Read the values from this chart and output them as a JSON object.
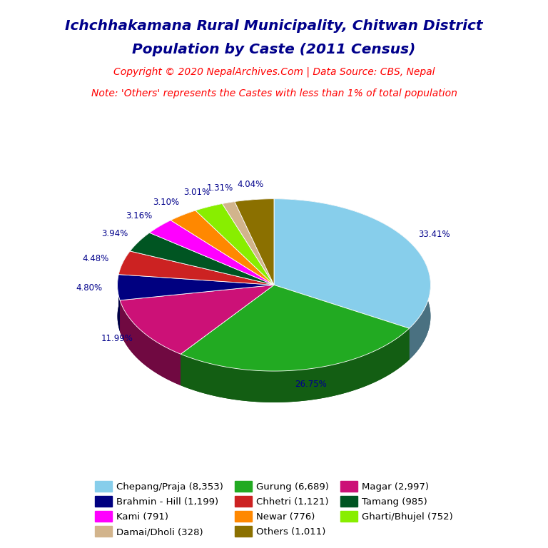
{
  "title_line1": "Ichchhakamana Rural Municipality, Chitwan District",
  "title_line2": "Population by Caste (2011 Census)",
  "copyright_text": "Copyright © 2020 NepalArchives.Com | Data Source: CBS, Nepal",
  "note_text": "Note: 'Others' represents the Castes with less than 1% of total population",
  "slices": [
    {
      "label": "Chepang/Praja",
      "value": 8353,
      "pct": 33.41,
      "color": "#87CEEB"
    },
    {
      "label": "Gurung",
      "value": 6689,
      "pct": 26.75,
      "color": "#22AA22"
    },
    {
      "label": "Magar",
      "value": 2997,
      "pct": 11.99,
      "color": "#CC1177"
    },
    {
      "label": "Brahmin - Hill",
      "value": 1199,
      "pct": 4.8,
      "color": "#000080"
    },
    {
      "label": "Chhetri",
      "value": 1121,
      "pct": 4.48,
      "color": "#CC2222"
    },
    {
      "label": "Tamang",
      "value": 985,
      "pct": 3.94,
      "color": "#005522"
    },
    {
      "label": "Kami",
      "value": 791,
      "pct": 3.16,
      "color": "#FF00FF"
    },
    {
      "label": "Newar",
      "value": 776,
      "pct": 3.1,
      "color": "#FF8800"
    },
    {
      "label": "Gharti/Bhujel",
      "value": 752,
      "pct": 3.01,
      "color": "#88EE00"
    },
    {
      "label": "Damai/Dholi",
      "value": 328,
      "pct": 1.31,
      "color": "#D2B48C"
    },
    {
      "label": "Others",
      "value": 1011,
      "pct": 4.04,
      "color": "#8B7000"
    }
  ],
  "legend_order": [
    0,
    3,
    6,
    9,
    1,
    4,
    7,
    10,
    2,
    5,
    8
  ],
  "title_color": "#00008B",
  "copyright_color": "#FF0000",
  "note_color": "#FF0000",
  "label_color": "#00008B",
  "background_color": "#FFFFFF",
  "yscale": 0.55,
  "depth": 0.2,
  "startangle": 90
}
